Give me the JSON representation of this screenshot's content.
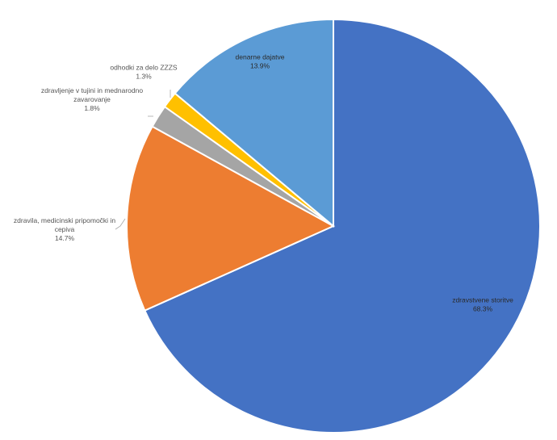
{
  "chart_data": {
    "type": "pie",
    "title": "",
    "start": "12 o'clock, clockwise",
    "slices": [
      {
        "label_lines": [
          "zdravstvene storitve"
        ],
        "percent_text": "68.3%",
        "value": 68.3,
        "color": "#4472C4"
      },
      {
        "label_lines": [
          "zdravila, medicinski pripomočki in",
          "cepiva"
        ],
        "percent_text": "14.7%",
        "value": 14.7,
        "color": "#ED7D31"
      },
      {
        "label_lines": [
          "zdravljenje v tujini in mednarodno",
          "zavarovanje"
        ],
        "percent_text": "1.8%",
        "value": 1.8,
        "color": "#A5A5A5"
      },
      {
        "label_lines": [
          "odhodki za delo ZZZS"
        ],
        "percent_text": "1.3%",
        "value": 1.3,
        "color": "#FFC000"
      },
      {
        "label_lines": [
          "denarne dajatve"
        ],
        "percent_text": "13.9%",
        "value": 13.9,
        "color": "#5B9BD5"
      }
    ]
  }
}
